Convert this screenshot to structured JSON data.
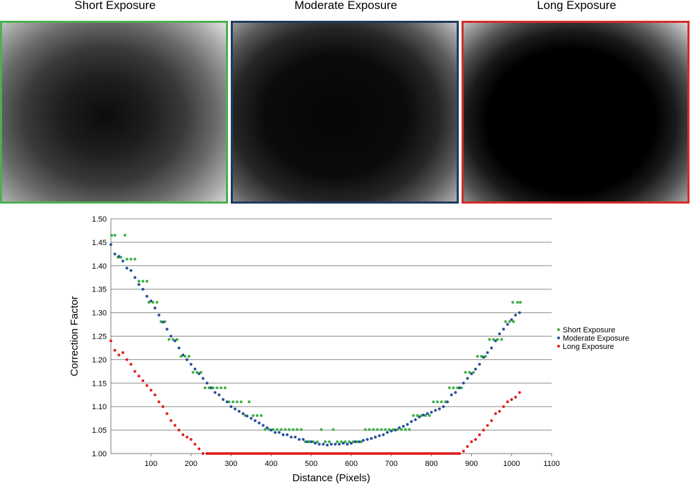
{
  "panels": [
    {
      "title": "Short Exposure",
      "border": "#4caf50",
      "vignette": "short"
    },
    {
      "title": "Moderate Exposure",
      "border": "#1f3a5f",
      "vignette": "moderate"
    },
    {
      "title": "Long Exposure",
      "border": "#d62b2b",
      "vignette": "long"
    }
  ],
  "chart_data": {
    "type": "scatter",
    "title": "",
    "xlabel": "Distance (Pixels)",
    "ylabel": "Correction Factor",
    "xlim": [
      0,
      1100
    ],
    "ylim": [
      1.0,
      1.5
    ],
    "x_ticks": [
      "100",
      "200",
      "300",
      "400",
      "500",
      "600",
      "700",
      "800",
      "900",
      "1000",
      "1100"
    ],
    "y_ticks": [
      "1.00",
      "1.05",
      "1.10",
      "1.15",
      "1.20",
      "1.25",
      "1.30",
      "1.35",
      "1.40",
      "1.45",
      "1.50"
    ],
    "grid": "horizontal",
    "legend_position": "right",
    "series": [
      {
        "name": "Short Exposure",
        "color": "#3cb043",
        "points": [
          [
            2,
            1.465
          ],
          [
            10,
            1.465
          ],
          [
            18,
            1.418
          ],
          [
            25,
            1.418
          ],
          [
            35,
            1.465
          ],
          [
            40,
            1.414
          ],
          [
            50,
            1.414
          ],
          [
            60,
            1.414
          ],
          [
            70,
            1.367
          ],
          [
            80,
            1.367
          ],
          [
            90,
            1.367
          ],
          [
            95,
            1.322
          ],
          [
            105,
            1.322
          ],
          [
            115,
            1.322
          ],
          [
            125,
            1.281
          ],
          [
            135,
            1.281
          ],
          [
            145,
            1.243
          ],
          [
            155,
            1.243
          ],
          [
            165,
            1.243
          ],
          [
            175,
            1.207
          ],
          [
            185,
            1.207
          ],
          [
            195,
            1.207
          ],
          [
            205,
            1.173
          ],
          [
            215,
            1.173
          ],
          [
            225,
            1.173
          ],
          [
            235,
            1.14
          ],
          [
            245,
            1.14
          ],
          [
            255,
            1.14
          ],
          [
            265,
            1.14
          ],
          [
            275,
            1.14
          ],
          [
            285,
            1.14
          ],
          [
            295,
            1.11
          ],
          [
            305,
            1.11
          ],
          [
            315,
            1.11
          ],
          [
            325,
            1.11
          ],
          [
            335,
            1.081
          ],
          [
            345,
            1.11
          ],
          [
            355,
            1.081
          ],
          [
            365,
            1.081
          ],
          [
            375,
            1.081
          ],
          [
            385,
            1.051
          ],
          [
            395,
            1.051
          ],
          [
            405,
            1.051
          ],
          [
            415,
            1.051
          ],
          [
            425,
            1.051
          ],
          [
            435,
            1.051
          ],
          [
            445,
            1.051
          ],
          [
            455,
            1.051
          ],
          [
            465,
            1.051
          ],
          [
            475,
            1.051
          ],
          [
            485,
            1.025
          ],
          [
            495,
            1.025
          ],
          [
            505,
            1.025
          ],
          [
            515,
            1.025
          ],
          [
            525,
            1.051
          ],
          [
            535,
            1.025
          ],
          [
            545,
            1.025
          ],
          [
            555,
            1.051
          ],
          [
            565,
            1.025
          ],
          [
            575,
            1.025
          ],
          [
            585,
            1.025
          ],
          [
            595,
            1.025
          ],
          [
            605,
            1.025
          ],
          [
            615,
            1.025
          ],
          [
            625,
            1.025
          ],
          [
            635,
            1.051
          ],
          [
            645,
            1.051
          ],
          [
            655,
            1.051
          ],
          [
            665,
            1.051
          ],
          [
            675,
            1.051
          ],
          [
            685,
            1.051
          ],
          [
            695,
            1.051
          ],
          [
            705,
            1.051
          ],
          [
            715,
            1.051
          ],
          [
            725,
            1.051
          ],
          [
            735,
            1.051
          ],
          [
            745,
            1.051
          ],
          [
            755,
            1.081
          ],
          [
            765,
            1.081
          ],
          [
            775,
            1.081
          ],
          [
            785,
            1.081
          ],
          [
            795,
            1.081
          ],
          [
            805,
            1.11
          ],
          [
            815,
            1.11
          ],
          [
            825,
            1.11
          ],
          [
            835,
            1.11
          ],
          [
            845,
            1.14
          ],
          [
            855,
            1.14
          ],
          [
            865,
            1.14
          ],
          [
            875,
            1.14
          ],
          [
            885,
            1.173
          ],
          [
            895,
            1.173
          ],
          [
            905,
            1.173
          ],
          [
            915,
            1.207
          ],
          [
            925,
            1.207
          ],
          [
            935,
            1.207
          ],
          [
            945,
            1.243
          ],
          [
            955,
            1.243
          ],
          [
            965,
            1.243
          ],
          [
            975,
            1.243
          ],
          [
            985,
            1.281
          ],
          [
            995,
            1.281
          ],
          [
            1005,
            1.281
          ],
          [
            1003,
            1.322
          ],
          [
            1015,
            1.322
          ],
          [
            1022,
            1.322
          ]
        ]
      },
      {
        "name": "Moderate Exposure",
        "color": "#2a4f9c",
        "points": [
          [
            0,
            1.445
          ],
          [
            10,
            1.425
          ],
          [
            20,
            1.42
          ],
          [
            30,
            1.41
          ],
          [
            40,
            1.395
          ],
          [
            50,
            1.39
          ],
          [
            60,
            1.375
          ],
          [
            70,
            1.36
          ],
          [
            80,
            1.35
          ],
          [
            90,
            1.335
          ],
          [
            100,
            1.325
          ],
          [
            110,
            1.31
          ],
          [
            120,
            1.295
          ],
          [
            130,
            1.28
          ],
          [
            140,
            1.265
          ],
          [
            150,
            1.25
          ],
          [
            160,
            1.24
          ],
          [
            170,
            1.225
          ],
          [
            180,
            1.21
          ],
          [
            190,
            1.2
          ],
          [
            200,
            1.19
          ],
          [
            210,
            1.18
          ],
          [
            220,
            1.17
          ],
          [
            230,
            1.16
          ],
          [
            240,
            1.15
          ],
          [
            250,
            1.14
          ],
          [
            260,
            1.13
          ],
          [
            270,
            1.125
          ],
          [
            280,
            1.115
          ],
          [
            290,
            1.11
          ],
          [
            300,
            1.1
          ],
          [
            310,
            1.095
          ],
          [
            320,
            1.09
          ],
          [
            330,
            1.085
          ],
          [
            340,
            1.08
          ],
          [
            350,
            1.075
          ],
          [
            360,
            1.07
          ],
          [
            370,
            1.065
          ],
          [
            380,
            1.06
          ],
          [
            390,
            1.055
          ],
          [
            400,
            1.05
          ],
          [
            410,
            1.045
          ],
          [
            420,
            1.045
          ],
          [
            430,
            1.04
          ],
          [
            440,
            1.04
          ],
          [
            450,
            1.035
          ],
          [
            460,
            1.035
          ],
          [
            470,
            1.03
          ],
          [
            480,
            1.03
          ],
          [
            490,
            1.025
          ],
          [
            500,
            1.025
          ],
          [
            510,
            1.022
          ],
          [
            520,
            1.02
          ],
          [
            530,
            1.02
          ],
          [
            540,
            1.018
          ],
          [
            550,
            1.02
          ],
          [
            560,
            1.02
          ],
          [
            570,
            1.02
          ],
          [
            580,
            1.022
          ],
          [
            590,
            1.02
          ],
          [
            600,
            1.022
          ],
          [
            610,
            1.025
          ],
          [
            620,
            1.025
          ],
          [
            630,
            1.028
          ],
          [
            640,
            1.03
          ],
          [
            650,
            1.032
          ],
          [
            660,
            1.035
          ],
          [
            670,
            1.038
          ],
          [
            680,
            1.04
          ],
          [
            690,
            1.045
          ],
          [
            700,
            1.048
          ],
          [
            710,
            1.05
          ],
          [
            720,
            1.055
          ],
          [
            730,
            1.058
          ],
          [
            740,
            1.062
          ],
          [
            750,
            1.068
          ],
          [
            760,
            1.072
          ],
          [
            770,
            1.078
          ],
          [
            780,
            1.082
          ],
          [
            790,
            1.085
          ],
          [
            800,
            1.088
          ],
          [
            810,
            1.092
          ],
          [
            820,
            1.095
          ],
          [
            830,
            1.1
          ],
          [
            840,
            1.11
          ],
          [
            850,
            1.125
          ],
          [
            860,
            1.13
          ],
          [
            870,
            1.14
          ],
          [
            880,
            1.15
          ],
          [
            890,
            1.16
          ],
          [
            900,
            1.17
          ],
          [
            910,
            1.18
          ],
          [
            920,
            1.19
          ],
          [
            930,
            1.205
          ],
          [
            940,
            1.215
          ],
          [
            950,
            1.225
          ],
          [
            960,
            1.24
          ],
          [
            970,
            1.255
          ],
          [
            980,
            1.265
          ],
          [
            990,
            1.275
          ],
          [
            1000,
            1.285
          ],
          [
            1010,
            1.295
          ],
          [
            1020,
            1.3
          ]
        ]
      },
      {
        "name": "Long Exposure",
        "color": "#e02020",
        "points": [
          [
            0,
            1.24
          ],
          [
            10,
            1.22
          ],
          [
            20,
            1.21
          ],
          [
            30,
            1.215
          ],
          [
            40,
            1.2
          ],
          [
            50,
            1.19
          ],
          [
            60,
            1.175
          ],
          [
            70,
            1.165
          ],
          [
            80,
            1.155
          ],
          [
            90,
            1.145
          ],
          [
            100,
            1.135
          ],
          [
            110,
            1.125
          ],
          [
            120,
            1.11
          ],
          [
            130,
            1.1
          ],
          [
            140,
            1.085
          ],
          [
            150,
            1.07
          ],
          [
            160,
            1.06
          ],
          [
            170,
            1.05
          ],
          [
            180,
            1.04
          ],
          [
            190,
            1.035
          ],
          [
            200,
            1.03
          ],
          [
            210,
            1.02
          ],
          [
            220,
            1.01
          ],
          [
            230,
            1.0
          ],
          [
            240,
            1.0
          ],
          [
            300,
            1.0
          ],
          [
            400,
            1.0
          ],
          [
            500,
            1.0
          ],
          [
            600,
            1.0
          ],
          [
            700,
            1.0
          ],
          [
            800,
            1.0
          ],
          [
            870,
            1.0
          ],
          [
            880,
            1.005
          ],
          [
            890,
            1.015
          ],
          [
            900,
            1.025
          ],
          [
            910,
            1.03
          ],
          [
            920,
            1.04
          ],
          [
            930,
            1.05
          ],
          [
            940,
            1.06
          ],
          [
            950,
            1.07
          ],
          [
            960,
            1.085
          ],
          [
            970,
            1.09
          ],
          [
            980,
            1.1
          ],
          [
            990,
            1.11
          ],
          [
            1000,
            1.115
          ],
          [
            1010,
            1.12
          ],
          [
            1020,
            1.13
          ]
        ]
      }
    ]
  }
}
